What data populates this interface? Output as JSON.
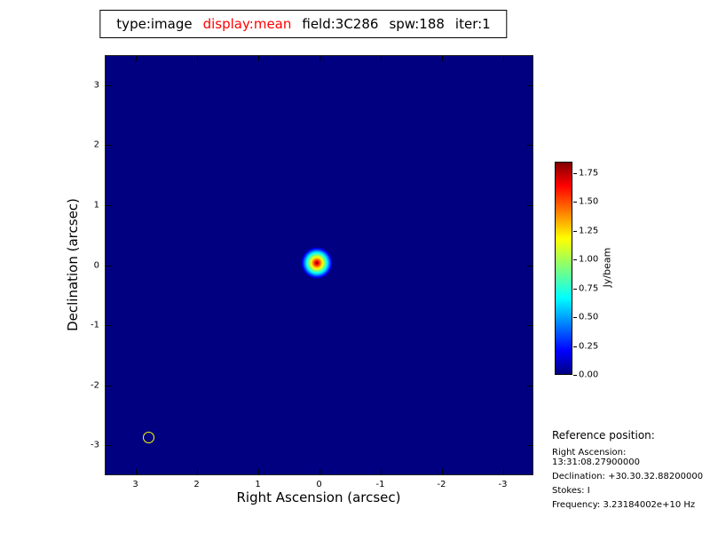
{
  "title": {
    "parts": [
      {
        "text": "type:image",
        "color": "#000000"
      },
      {
        "text": "display:mean",
        "color": "#ff0000"
      },
      {
        "text": "field:3C286",
        "color": "#000000"
      },
      {
        "text": "spw:188",
        "color": "#000000"
      },
      {
        "text": "iter:1",
        "color": "#000000"
      }
    ]
  },
  "chart_data": {
    "type": "heatmap",
    "title": "type:image display:mean field:3C286 spw:188 iter:1",
    "xlabel": "Right Ascension (arcsec)",
    "ylabel": "Declination (arcsec)",
    "x_ticks": [
      "3",
      "2",
      "1",
      "0",
      "-1",
      "-2",
      "-3"
    ],
    "y_ticks": [
      "3",
      "2",
      "1",
      "0",
      "-1",
      "-2",
      "-3"
    ],
    "xlim": [
      3.5,
      -3.5
    ],
    "ylim": [
      -3.5,
      3.5
    ],
    "grid": false,
    "colormap": "jet",
    "colormap_stops": [
      {
        "pos": 0.0,
        "color": "#000080"
      },
      {
        "pos": 0.11,
        "color": "#0000ff"
      },
      {
        "pos": 0.36,
        "color": "#00ffff"
      },
      {
        "pos": 0.5,
        "color": "#7dff7a"
      },
      {
        "pos": 0.64,
        "color": "#ffff00"
      },
      {
        "pos": 0.89,
        "color": "#ff0000"
      },
      {
        "pos": 1.0,
        "color": "#800000"
      }
    ],
    "background_value": 0.0,
    "plot_background_color": "#000081",
    "colorbar": {
      "label": "Jy/beam",
      "ticks": [
        "0.00",
        "0.25",
        "0.50",
        "0.75",
        "1.00",
        "1.25",
        "1.50",
        "1.75"
      ],
      "vmin": 0.0,
      "vmax": 1.85,
      "position": "right"
    },
    "source": {
      "description": "compact point source at field center",
      "x": 0.05,
      "y": 0.05,
      "peak_value": 1.8
    },
    "beam": {
      "description": "synthesized beam marker",
      "x": 2.8,
      "y": -2.85,
      "radius_arcsec": 0.1,
      "color": "#ffff00"
    }
  },
  "reference": {
    "heading": "Reference position:",
    "lines": [
      "Right Ascension: 13:31:08.27900000",
      "Declination: +30.30.32.88200000",
      "Stokes: I",
      "Frequency: 3.23184002e+10 Hz"
    ]
  }
}
